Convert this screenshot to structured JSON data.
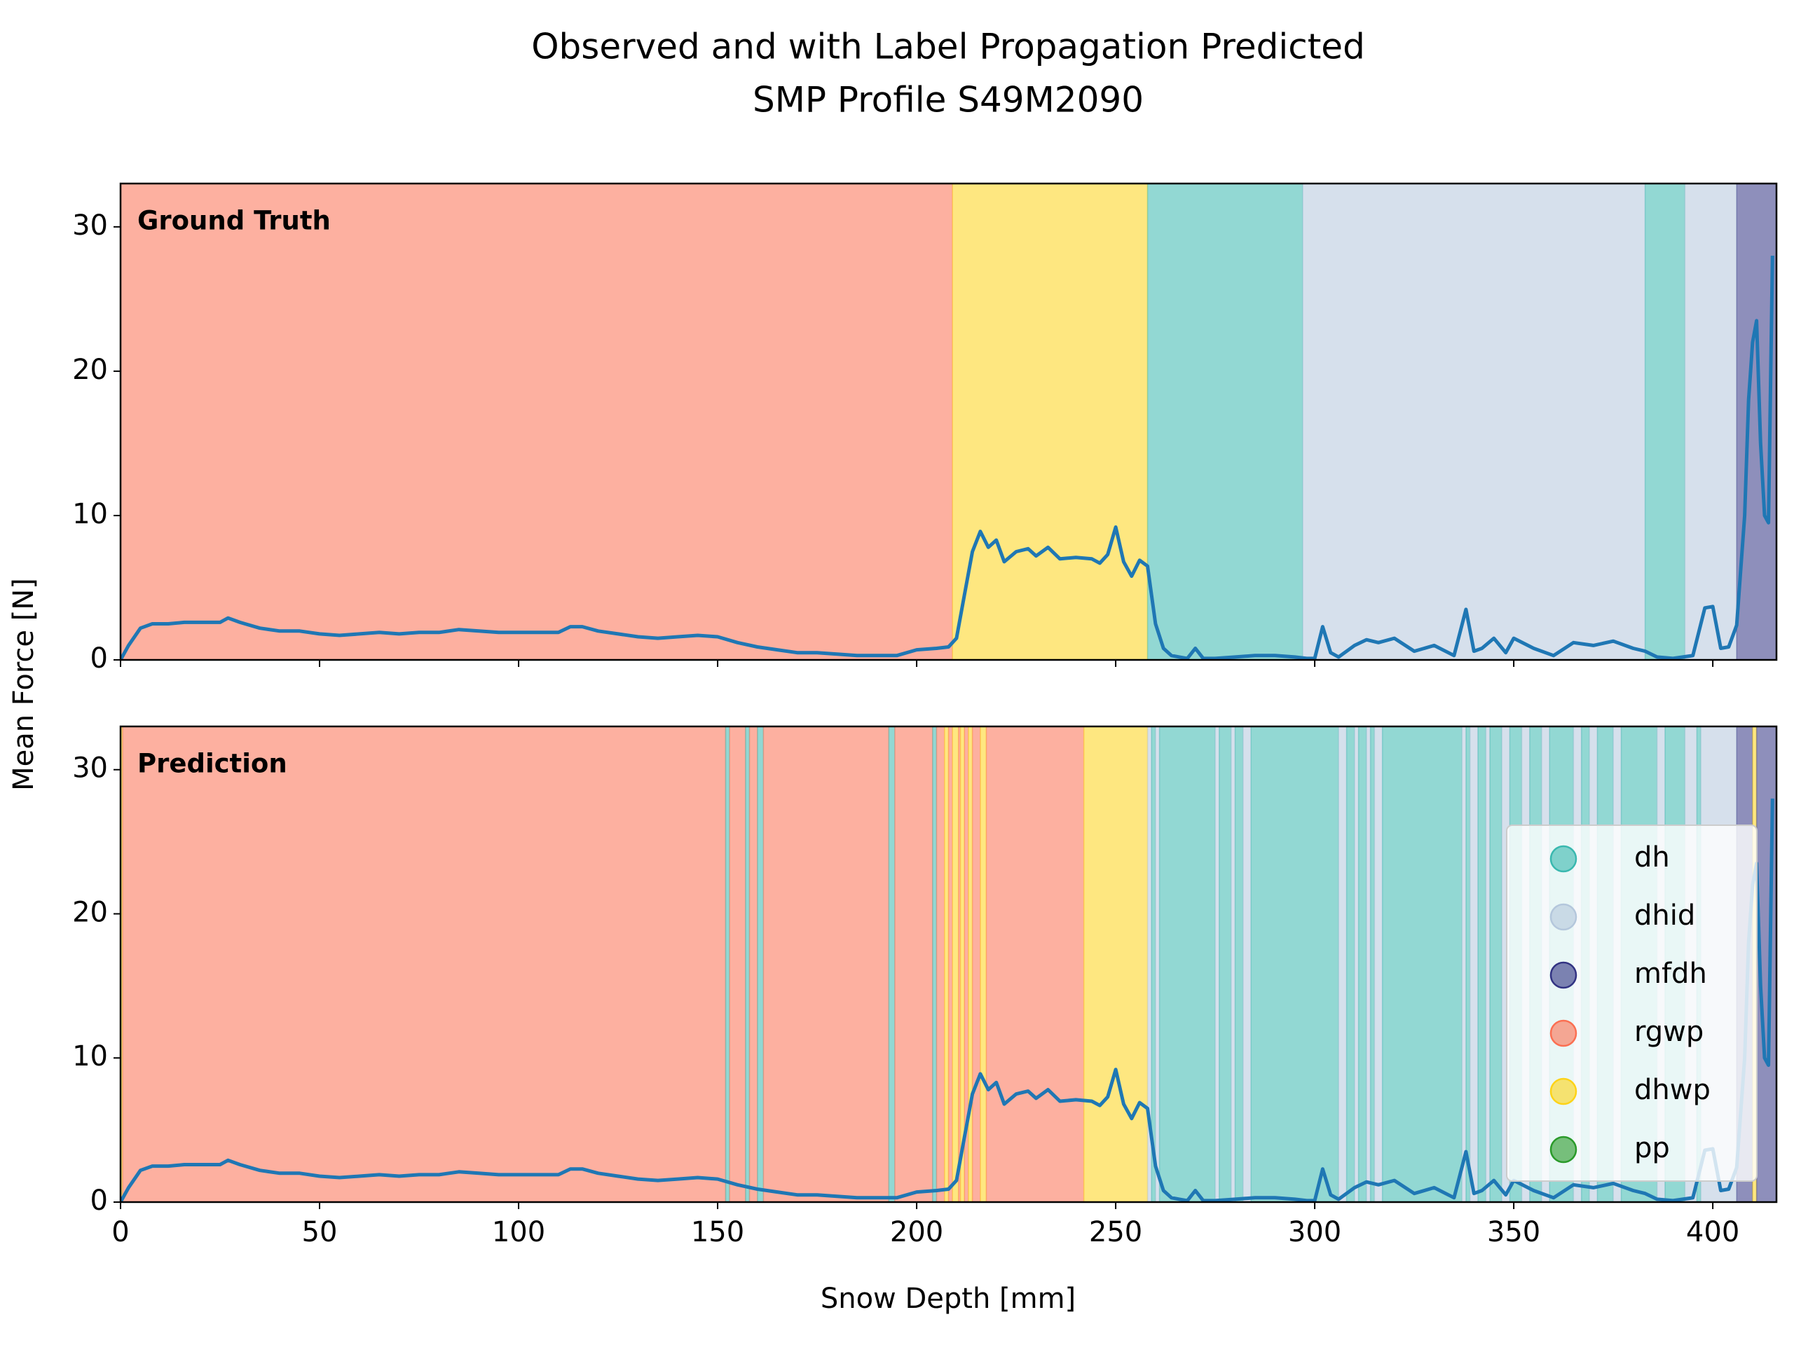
{
  "chart_data": {
    "type": "line",
    "title": "Observed and with Label Propagation Predicted",
    "subtitle": "SMP Profile S49M2090",
    "x_label": "Snow Depth [mm]",
    "y_label": "Mean Force [N]",
    "xlim": [
      0,
      416
    ],
    "xticks": [
      0,
      50,
      100,
      150,
      200,
      250,
      300,
      350,
      400
    ],
    "ylim": [
      0,
      33
    ],
    "yticks": [
      0,
      10,
      20,
      30
    ],
    "legend": "lower right",
    "x": [
      0,
      2,
      5,
      8,
      12,
      16,
      20,
      25,
      27,
      30,
      35,
      40,
      45,
      50,
      55,
      60,
      65,
      70,
      75,
      80,
      85,
      90,
      95,
      100,
      105,
      110,
      113,
      116,
      120,
      125,
      130,
      135,
      140,
      145,
      150,
      155,
      160,
      165,
      170,
      175,
      180,
      185,
      190,
      195,
      200,
      205,
      208,
      210,
      212,
      214,
      216,
      218,
      220,
      222,
      225,
      228,
      230,
      233,
      236,
      240,
      244,
      246,
      248,
      250,
      252,
      254,
      256,
      258,
      260,
      262,
      264,
      266,
      268,
      270,
      272,
      275,
      280,
      285,
      290,
      295,
      298,
      300,
      302,
      304,
      306,
      310,
      313,
      316,
      320,
      325,
      330,
      335,
      338,
      340,
      342,
      345,
      348,
      350,
      355,
      360,
      365,
      370,
      375,
      380,
      383,
      386,
      390,
      395,
      398,
      400,
      402,
      404,
      406,
      408,
      409,
      410,
      411,
      412,
      413,
      414,
      415
    ],
    "series": [
      {
        "color": "#1f77b4",
        "values": [
          0,
          1,
          2.2,
          2.5,
          2.5,
          2.6,
          2.6,
          2.6,
          2.9,
          2.6,
          2.2,
          2.0,
          2.0,
          1.8,
          1.7,
          1.8,
          1.9,
          1.8,
          1.9,
          1.9,
          2.1,
          2.0,
          1.9,
          1.9,
          1.9,
          1.9,
          2.3,
          2.3,
          2.0,
          1.8,
          1.6,
          1.5,
          1.6,
          1.7,
          1.6,
          1.2,
          0.9,
          0.7,
          0.5,
          0.5,
          0.4,
          0.3,
          0.3,
          0.3,
          0.7,
          0.8,
          0.9,
          1.5,
          4.5,
          7.5,
          8.9,
          7.8,
          8.3,
          6.8,
          7.5,
          7.7,
          7.2,
          7.8,
          7.0,
          7.1,
          7.0,
          6.7,
          7.3,
          9.2,
          6.8,
          5.8,
          6.9,
          6.5,
          2.5,
          0.8,
          0.3,
          0.2,
          0.1,
          0.8,
          0.1,
          0.1,
          0.2,
          0.3,
          0.3,
          0.2,
          0.1,
          0.1,
          2.3,
          0.5,
          0.2,
          1.0,
          1.4,
          1.2,
          1.5,
          0.6,
          1.0,
          0.3,
          3.5,
          0.6,
          0.8,
          1.5,
          0.5,
          1.5,
          0.8,
          0.3,
          1.2,
          1.0,
          1.3,
          0.8,
          0.6,
          0.2,
          0.1,
          0.3,
          3.6,
          3.7,
          0.8,
          0.9,
          2.4,
          10,
          18,
          22,
          23.5,
          15,
          10,
          9.5,
          28
        ]
      }
    ],
    "classes": [
      {
        "name": "dh",
        "color": "#39b8af"
      },
      {
        "name": "dhid",
        "color": "#b4c7dc"
      },
      {
        "name": "mfdh",
        "color": "#323383"
      },
      {
        "name": "rgwp",
        "color": "#fb6f52"
      },
      {
        "name": "dhwp",
        "color": "#fdd318"
      },
      {
        "name": "pp",
        "color": "#2a9a2a"
      }
    ],
    "panels": [
      {
        "label": "Ground Truth",
        "spans": [
          [
            0,
            209,
            3
          ],
          [
            209,
            258,
            4
          ],
          [
            258,
            297,
            0
          ],
          [
            297,
            383,
            1
          ],
          [
            383,
            393,
            0
          ],
          [
            393,
            406,
            1
          ],
          [
            406,
            416,
            2
          ]
        ]
      },
      {
        "label": "Prediction",
        "spans": [
          [
            0,
            0.5,
            4
          ],
          [
            0.5,
            152,
            3
          ],
          [
            152,
            153,
            0
          ],
          [
            153,
            157,
            3
          ],
          [
            157,
            158,
            0
          ],
          [
            158,
            160,
            3
          ],
          [
            160,
            161.5,
            0
          ],
          [
            161.5,
            193,
            3
          ],
          [
            193,
            194.5,
            0
          ],
          [
            194.5,
            204,
            3
          ],
          [
            204,
            205,
            0
          ],
          [
            205,
            207,
            3
          ],
          [
            207,
            208,
            4
          ],
          [
            208,
            209,
            3
          ],
          [
            209,
            210.5,
            4
          ],
          [
            210.5,
            211,
            3
          ],
          [
            211,
            212,
            4
          ],
          [
            212,
            213,
            3
          ],
          [
            213,
            214,
            4
          ],
          [
            214,
            216,
            3
          ],
          [
            216,
            217.5,
            4
          ],
          [
            217.5,
            242,
            3
          ],
          [
            242,
            258,
            4
          ],
          [
            258,
            259,
            1
          ],
          [
            259,
            260,
            0
          ],
          [
            260,
            261,
            1
          ],
          [
            261,
            275,
            0
          ],
          [
            275,
            276,
            1
          ],
          [
            276,
            279,
            0
          ],
          [
            279,
            280,
            1
          ],
          [
            280,
            282,
            0
          ],
          [
            282,
            284,
            1
          ],
          [
            284,
            306,
            0
          ],
          [
            306,
            308,
            1
          ],
          [
            308,
            310,
            0
          ],
          [
            310,
            311,
            1
          ],
          [
            311,
            313,
            0
          ],
          [
            313,
            314,
            1
          ],
          [
            314,
            315,
            0
          ],
          [
            315,
            317,
            1
          ],
          [
            317,
            337,
            0
          ],
          [
            337,
            338,
            1
          ],
          [
            338,
            339,
            0
          ],
          [
            339,
            341,
            1
          ],
          [
            341,
            343,
            0
          ],
          [
            343,
            344,
            1
          ],
          [
            344,
            347,
            0
          ],
          [
            347,
            349,
            1
          ],
          [
            349,
            352,
            0
          ],
          [
            352,
            354,
            1
          ],
          [
            354,
            357,
            0
          ],
          [
            357,
            359,
            1
          ],
          [
            359,
            365,
            0
          ],
          [
            365,
            367,
            1
          ],
          [
            367,
            369,
            0
          ],
          [
            369,
            371,
            1
          ],
          [
            371,
            375,
            0
          ],
          [
            375,
            377,
            1
          ],
          [
            377,
            386,
            0
          ],
          [
            386,
            388,
            1
          ],
          [
            388,
            393,
            0
          ],
          [
            393,
            396,
            1
          ],
          [
            396,
            397,
            0
          ],
          [
            397,
            406,
            1
          ],
          [
            406,
            410,
            2
          ],
          [
            410,
            411,
            4
          ],
          [
            411,
            416,
            2
          ]
        ]
      }
    ]
  }
}
